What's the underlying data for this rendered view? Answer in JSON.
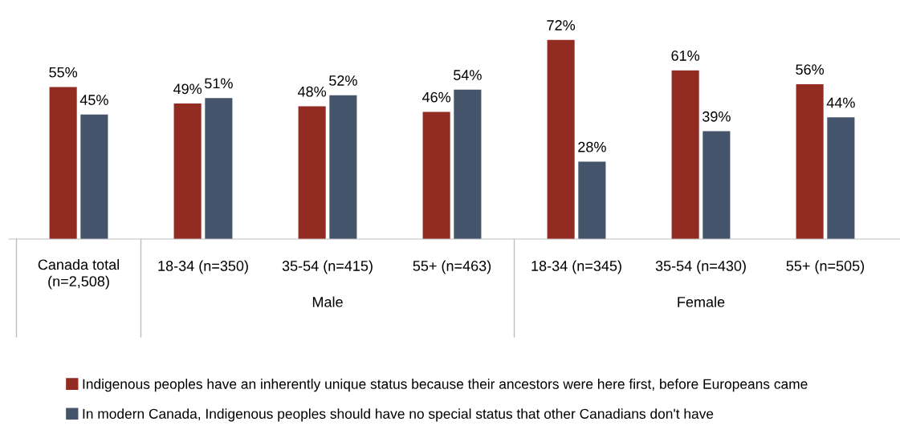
{
  "chart_data": {
    "type": "bar",
    "categories": [
      "Canada total (n=2,508)",
      "18-34 (n=350)",
      "35-54 (n=415)",
      "55+ (n=463)",
      "18-34 (n=345)",
      "35-54 (n=430)",
      "55+ (n=505)"
    ],
    "series": [
      {
        "name": "Indigenous peoples have an inherently unique status because their ancestors were here first, before Europeans came",
        "color": "#922b21",
        "values": [
          55,
          49,
          48,
          46,
          72,
          61,
          56
        ],
        "value_labels": [
          "55%",
          "49%",
          "48%",
          "46%",
          "72%",
          "61%",
          "56%"
        ]
      },
      {
        "name": "In modern Canada, Indigenous peoples should have no special status that other Canadians don't have",
        "color": "#44546a",
        "values": [
          45,
          51,
          52,
          54,
          28,
          39,
          44
        ],
        "value_labels": [
          "45%",
          "51%",
          "52%",
          "54%",
          "28%",
          "39%",
          "44%"
        ]
      }
    ],
    "annotations": [
      "Male",
      "Female"
    ],
    "legend": "bottom left"
  }
}
